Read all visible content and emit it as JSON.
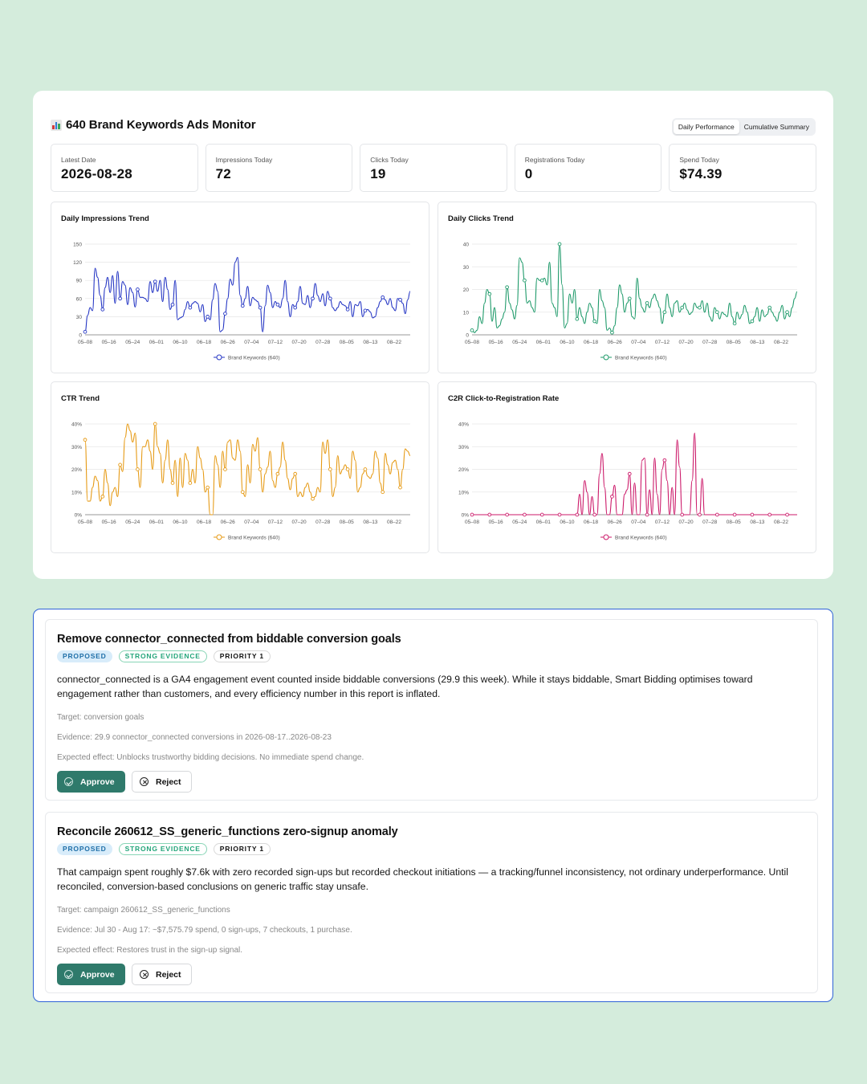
{
  "monitor": {
    "title": "640 Brand Keywords Ads Monitor",
    "title_icon": "bar-chart-emoji",
    "tabs": [
      "Daily Performance",
      "Cumulative Summary"
    ],
    "active_tab": "Daily Performance"
  },
  "kpis": [
    {
      "label": "Latest Date",
      "value": "2026-08-28"
    },
    {
      "label": "Impressions Today",
      "value": "72"
    },
    {
      "label": "Clicks Today",
      "value": "19"
    },
    {
      "label": "Registrations Today",
      "value": "0"
    },
    {
      "label": "Spend Today",
      "value": "$74.39"
    }
  ],
  "chart_data": [
    {
      "type": "line",
      "title": "Daily Impressions Trend",
      "color": "#2536c4",
      "ylim": [
        0,
        150
      ],
      "yticks": [
        "0",
        "30",
        "60",
        "90",
        "120",
        "150"
      ],
      "xticks": [
        "05–08",
        "05–16",
        "05–24",
        "06–01",
        "06–10",
        "06–18",
        "06–26",
        "07–04",
        "07–12",
        "07–20",
        "07–28",
        "08–05",
        "08–13",
        "08–22"
      ],
      "series": [
        {
          "name": "Brand Keywords (640)",
          "values": [
            5,
            32,
            45,
            40,
            110,
            95,
            65,
            42,
            78,
            95,
            70,
            98,
            52,
            105,
            60,
            88,
            82,
            50,
            78,
            70,
            46,
            75,
            62,
            62,
            60,
            55,
            88,
            70,
            88,
            72,
            90,
            55,
            95,
            75,
            42,
            50,
            90,
            25,
            28,
            30,
            42,
            55,
            45,
            52,
            55,
            52,
            38,
            50,
            22,
            30,
            25,
            58,
            85,
            72,
            5,
            8,
            35,
            60,
            92,
            82,
            120,
            128,
            65,
            48,
            60,
            80,
            48,
            62,
            58,
            55,
            45,
            5,
            48,
            82,
            70,
            45,
            55,
            50,
            45,
            60,
            90,
            55,
            30,
            50,
            45,
            55,
            80,
            52,
            50,
            65,
            45,
            60,
            85,
            65,
            55,
            68,
            48,
            72,
            60,
            45,
            40,
            45,
            55,
            50,
            48,
            42,
            55,
            30,
            50,
            48,
            55,
            30,
            40,
            42,
            38,
            28,
            30,
            45,
            55,
            62,
            58,
            50,
            60,
            45,
            40,
            60,
            58,
            52,
            35,
            58,
            72
          ]
        }
      ],
      "grid": true,
      "legend": "bottom"
    },
    {
      "type": "line",
      "title": "Daily Clicks Trend",
      "color": "#1e9a6a",
      "ylim": [
        0,
        40
      ],
      "yticks": [
        "0",
        "10",
        "20",
        "30",
        "40"
      ],
      "xticks": [
        "05–08",
        "05–16",
        "05–24",
        "06–01",
        "06–10",
        "06–18",
        "06–26",
        "07–04",
        "07–12",
        "07–20",
        "07–28",
        "08–05",
        "08–13",
        "08–22"
      ],
      "series": [
        {
          "name": "Brand Keywords (640)",
          "values": [
            2,
            1,
            2,
            8,
            5,
            14,
            20,
            18,
            6,
            12,
            3,
            4,
            7,
            10,
            21,
            14,
            11,
            7,
            13,
            34,
            32,
            24,
            14,
            15,
            12,
            10,
            25,
            24,
            24,
            25,
            22,
            32,
            14,
            12,
            8,
            40,
            22,
            3,
            5,
            18,
            14,
            20,
            7,
            12,
            8,
            5,
            10,
            14,
            12,
            6,
            5,
            20,
            15,
            12,
            2,
            3,
            1,
            4,
            12,
            22,
            18,
            10,
            14,
            16,
            8,
            7,
            25,
            16,
            12,
            10,
            14,
            12,
            16,
            18,
            15,
            12,
            5,
            10,
            18,
            12,
            8,
            14,
            15,
            10,
            12,
            14,
            11,
            9,
            10,
            14,
            12,
            12,
            15,
            10,
            14,
            8,
            6,
            12,
            10,
            7,
            10,
            9,
            8,
            14,
            8,
            5,
            10,
            7,
            9,
            13,
            10,
            5,
            6,
            8,
            12,
            6,
            11,
            8,
            9,
            12,
            10,
            8,
            6,
            10,
            13,
            7,
            10,
            8,
            12,
            16,
            19
          ]
        }
      ],
      "grid": true,
      "legend": "bottom"
    },
    {
      "type": "line",
      "title": "CTR Trend",
      "color": "#e69a14",
      "ylim": [
        0,
        40
      ],
      "yticks": [
        "0%",
        "10%",
        "20%",
        "30%",
        "40%"
      ],
      "xticks": [
        "05–08",
        "05–16",
        "05–24",
        "06–01",
        "06–10",
        "06–18",
        "06–26",
        "07–04",
        "07–12",
        "07–20",
        "07–28",
        "08–05",
        "08–13",
        "08–22"
      ],
      "series": [
        {
          "name": "Brand Keywords (640)",
          "values": [
            33,
            6,
            6,
            12,
            17,
            15,
            6,
            8,
            20,
            14,
            4,
            10,
            12,
            8,
            22,
            19,
            34,
            40,
            37,
            32,
            36,
            20,
            12,
            30,
            30,
            33,
            28,
            20,
            40,
            30,
            27,
            14,
            24,
            33,
            20,
            14,
            24,
            8,
            25,
            12,
            27,
            24,
            14,
            20,
            14,
            30,
            25,
            20,
            10,
            12,
            0,
            0,
            26,
            22,
            12,
            28,
            20,
            32,
            33,
            25,
            24,
            33,
            28,
            10,
            8,
            22,
            14,
            31,
            28,
            34,
            20,
            10,
            18,
            21,
            28,
            15,
            12,
            18,
            21,
            32,
            24,
            16,
            11,
            16,
            18,
            8,
            10,
            8,
            12,
            14,
            10,
            7,
            8,
            12,
            10,
            32,
            27,
            33,
            20,
            8,
            12,
            26,
            18,
            20,
            22,
            20,
            16,
            28,
            24,
            10,
            12,
            18,
            20,
            17,
            16,
            18,
            28,
            25,
            14,
            10,
            27,
            22,
            18,
            23,
            24,
            20,
            12,
            20,
            29,
            28,
            26
          ]
        }
      ],
      "grid": true,
      "legend": "bottom"
    },
    {
      "type": "line",
      "title": "C2R Click-to-Registration Rate",
      "color": "#cc1a6a",
      "ylim": [
        0,
        40
      ],
      "yticks": [
        "0%",
        "10%",
        "20%",
        "30%",
        "40%"
      ],
      "xticks": [
        "05–08",
        "05–16",
        "05–24",
        "06–01",
        "06–10",
        "06–18",
        "06–26",
        "07–04",
        "07–12",
        "07–20",
        "07–28",
        "08–05",
        "08–13",
        "08–22"
      ],
      "series": [
        {
          "name": "Brand Keywords (640)",
          "values": [
            0,
            0,
            0,
            0,
            0,
            0,
            0,
            0,
            0,
            0,
            0,
            0,
            0,
            0,
            0,
            0,
            0,
            0,
            0,
            0,
            0,
            0,
            0,
            0,
            0,
            0,
            0,
            0,
            0,
            0,
            0,
            0,
            0,
            0,
            0,
            0,
            0,
            0,
            0,
            0,
            0,
            0,
            0,
            9,
            0,
            15,
            10,
            0,
            8,
            0,
            0,
            18,
            27,
            12,
            0,
            0,
            8,
            13,
            0,
            0,
            0,
            9,
            11,
            18,
            0,
            14,
            0,
            0,
            24,
            25,
            0,
            11,
            0,
            25,
            9,
            0,
            20,
            24,
            15,
            0,
            12,
            0,
            33,
            21,
            0,
            0,
            0,
            0,
            15,
            36,
            0,
            0,
            16,
            0,
            0,
            0,
            0,
            0,
            0,
            0,
            0,
            0,
            0,
            0,
            0,
            0,
            0,
            0,
            0,
            0,
            0,
            0,
            0,
            0,
            0,
            0,
            0,
            0,
            0,
            0,
            0,
            0,
            0,
            0,
            0,
            0,
            0,
            0,
            0,
            0,
            0
          ]
        }
      ],
      "grid": true,
      "legend": "bottom"
    }
  ],
  "recommendations": [
    {
      "title": "Remove connector_connected from biddable conversion goals",
      "badges": [
        "PROPOSED",
        "STRONG EVIDENCE",
        "PRIORITY 1"
      ],
      "description": "connector_connected is a GA4 engagement event counted inside biddable conversions (29.9 this week). While it stays biddable, Smart Bidding optimises toward engagement rather than customers, and every efficiency number in this report is inflated.",
      "target": "Target: conversion goals",
      "evidence": "Evidence: 29.9 connector_connected conversions in 2026-08-17..2026-08-23",
      "effect": "Expected effect: Unblocks trustworthy bidding decisions. No immediate spend change.",
      "approve": "Approve",
      "reject": "Reject"
    },
    {
      "title": "Reconcile 260612_SS_generic_functions zero-signup anomaly",
      "badges": [
        "PROPOSED",
        "STRONG EVIDENCE",
        "PRIORITY 1"
      ],
      "description": "That campaign spent roughly $7.6k with zero recorded sign-ups but recorded checkout initiations — a tracking/funnel inconsistency, not ordinary underperformance. Until reconciled, conversion-based conclusions on generic traffic stay unsafe.",
      "target": "Target: campaign 260612_SS_generic_functions",
      "evidence": "Evidence: Jul 30 - Aug 17: ~$7,575.79 spend, 0 sign-ups, 7 checkouts, 1 purchase.",
      "effect": "Expected effect: Restores trust in the sign-up signal.",
      "approve": "Approve",
      "reject": "Reject"
    }
  ]
}
